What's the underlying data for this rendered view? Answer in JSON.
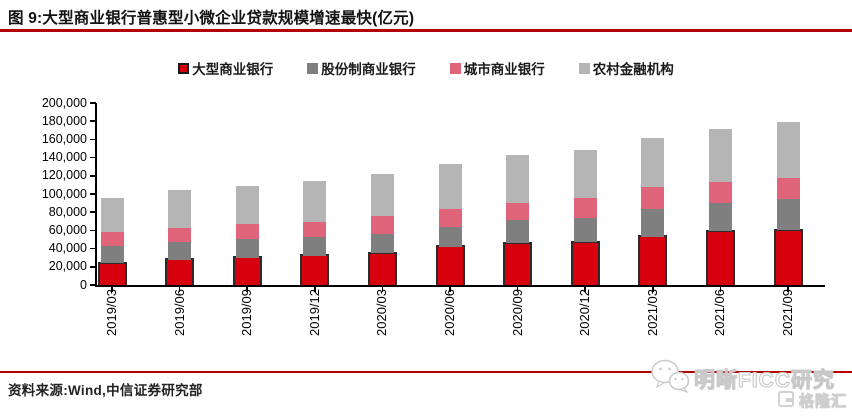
{
  "figure": {
    "title": "图 9:大型商业银行普惠型小微企业贷款规模增速最快(亿元)",
    "source_note": "资料来源:Wind,中信证券研究部"
  },
  "watermark": {
    "wechat_icon": "wechat-icon",
    "brand_text": "明晰FICC研究",
    "platform_text": "格隆汇"
  },
  "colors": {
    "accent_rule": "#b30000",
    "large_bank": "#d6000f",
    "large_bank_border": "#2b2b2b",
    "joint_stock_bank": "#7f7f7f",
    "city_bank": "#e0647a",
    "rural_institution": "#b5b5b5",
    "axis": "#000000"
  },
  "chart_data": {
    "type": "bar",
    "stacked": true,
    "unit": "亿元",
    "title": "大型商业银行普惠型小微企业贷款规模增速最快(亿元)",
    "xlabel": "",
    "ylabel": "",
    "grid": false,
    "legend_position": "top",
    "ylim": [
      0,
      200000
    ],
    "ytick_step": 20000,
    "ytick_labels": [
      "0",
      "20,000",
      "40,000",
      "60,000",
      "80,000",
      "100,000",
      "120,000",
      "140,000",
      "160,000",
      "180,000",
      "200,000"
    ],
    "categories": [
      "2019/03",
      "2019/06",
      "2019/09",
      "2019/12",
      "2020/03",
      "2020/06",
      "2020/09",
      "2020/12",
      "2021/03",
      "2021/06",
      "2021/09"
    ],
    "series": [
      {
        "name": "大型商业银行",
        "color": "#d6000f",
        "border_color": "#2b2b2b",
        "values": [
          24000,
          28000,
          30000,
          32000,
          35000,
          42000,
          46000,
          47000,
          53000,
          59000,
          60000
        ]
      },
      {
        "name": "股份制商业银行",
        "color": "#7f7f7f",
        "values": [
          19000,
          19000,
          21000,
          21000,
          21000,
          22000,
          25000,
          27000,
          31000,
          31000,
          34000
        ]
      },
      {
        "name": "城市商业银行",
        "color": "#e0647a",
        "values": [
          15000,
          16000,
          16000,
          16000,
          20000,
          20000,
          19000,
          22000,
          24000,
          23000,
          24000
        ]
      },
      {
        "name": "农村金融机构",
        "color": "#b5b5b5",
        "values": [
          38000,
          41000,
          42000,
          45000,
          46000,
          49000,
          53000,
          52000,
          54000,
          58000,
          61000
        ]
      }
    ],
    "totals": [
      96000,
      104000,
      109000,
      114000,
      122000,
      133000,
      143000,
      148000,
      162000,
      171000,
      179000
    ]
  }
}
